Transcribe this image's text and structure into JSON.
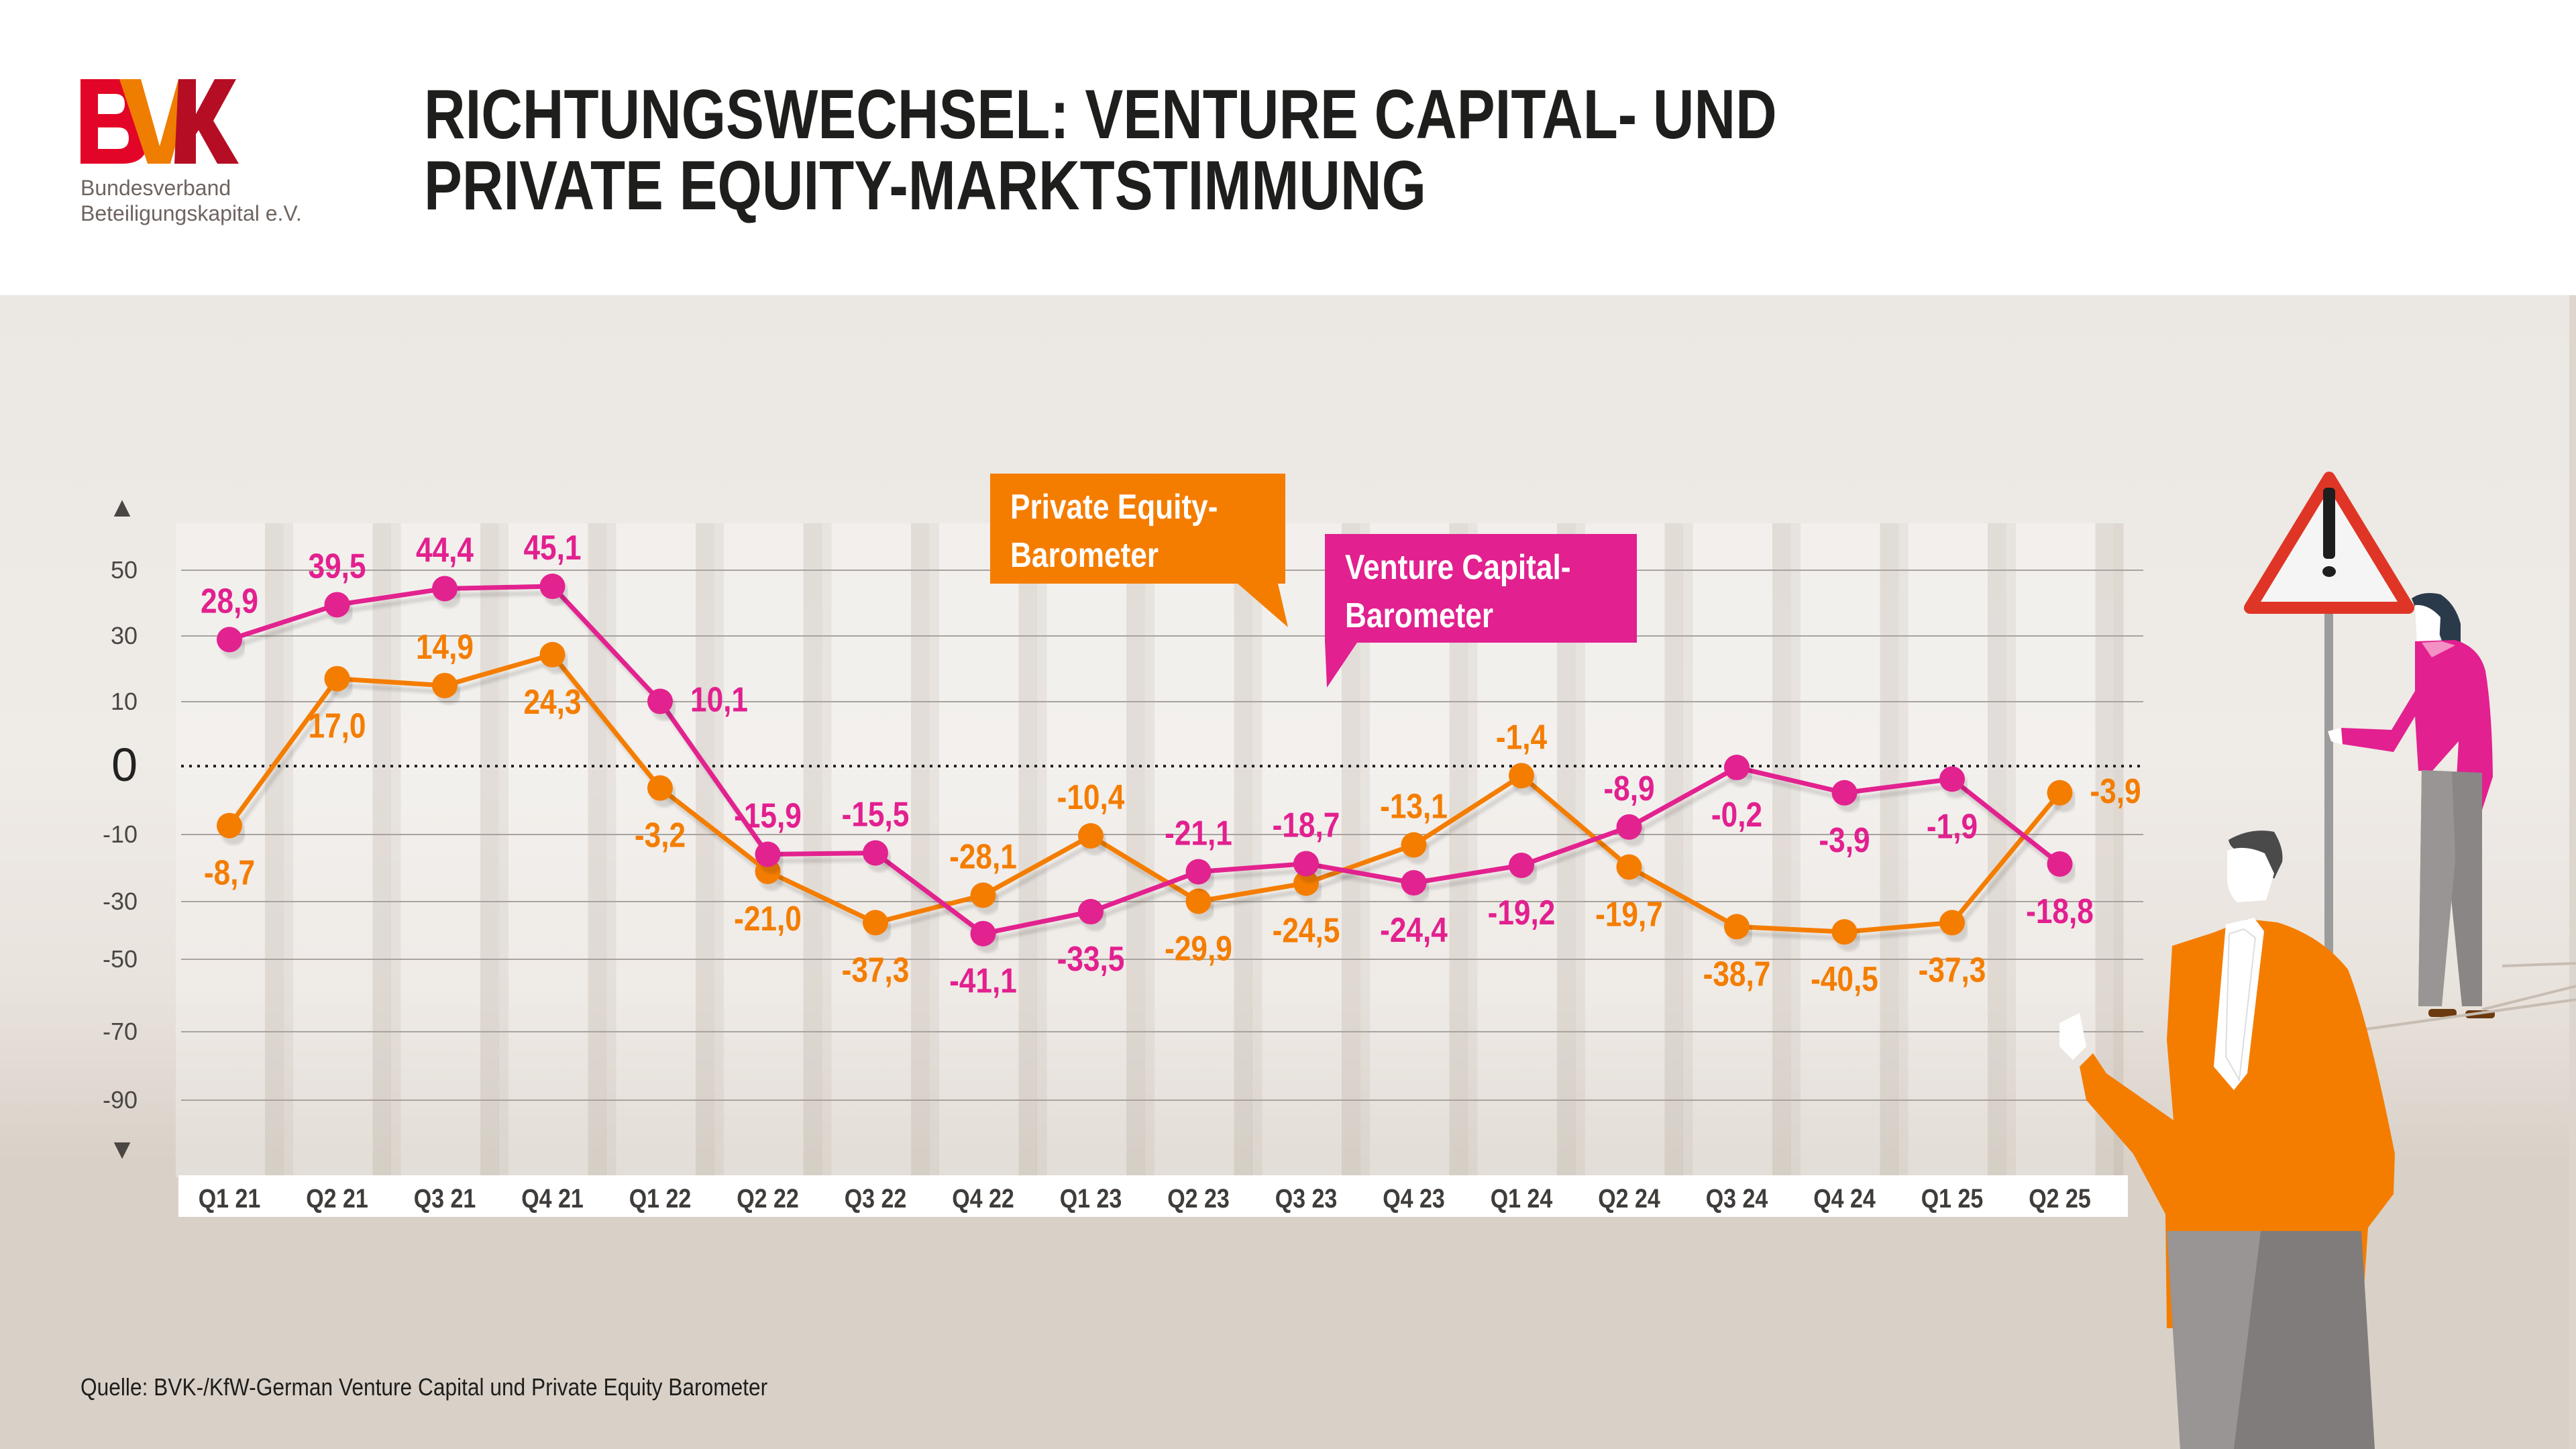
{
  "header": {
    "logo_text": "BVK",
    "org_line1": "Bundesverband",
    "org_line2": "Beteiligungskapital e.V.",
    "title_line1": "RICHTUNGSWECHSEL: VENTURE CAPITAL- UND",
    "title_line2": "PRIVATE EQUITY-MARKTSTIMMUNG"
  },
  "legend": {
    "pe_line1": "Private Equity-",
    "pe_line2": "Barometer",
    "vc_line1": "Venture Capital-",
    "vc_line2": "Barometer"
  },
  "source": "Quelle: BVK-/KfW-German Venture Capital und Private Equity Barometer",
  "icons": {
    "up_arrow": "▲",
    "down_arrow": "▼",
    "warning_sign": "warning-triangle-icon"
  },
  "colors": {
    "pe": "#f47d00",
    "vc": "#e2208f",
    "logo_red": "#e30527",
    "logo_orange": "#ef7d00",
    "logo_darkred": "#b50e24",
    "grid": "#a8a39e",
    "text_dark": "#1e1e1c",
    "axis_text": "#4a4643"
  },
  "chart_data": {
    "type": "line",
    "title": "RICHTUNGSWECHSEL: VENTURE CAPITAL- UND PRIVATE EQUITY-MARKTSTIMMUNG",
    "xlabel": "",
    "ylabel": "",
    "categories": [
      "Q1 21",
      "Q2 21",
      "Q3 21",
      "Q4 21",
      "Q1 22",
      "Q2 22",
      "Q3 22",
      "Q4 22",
      "Q1 23",
      "Q2 23",
      "Q3 23",
      "Q4 23",
      "Q1 24",
      "Q2 24",
      "Q3 24",
      "Q4 24",
      "Q1 25",
      "Q2 25"
    ],
    "y_ticks": [
      50,
      30,
      10,
      0,
      -10,
      -30,
      -50,
      -70,
      -90
    ],
    "y_tick_labels": [
      "50",
      "30",
      "10",
      "0",
      "-10",
      "-30",
      "-50",
      "-70",
      "-90"
    ],
    "ylim": [
      -100,
      60
    ],
    "grid": true,
    "zero_line": "dotted",
    "legend_placement": "top-center callouts",
    "series": [
      {
        "name": "Private Equity-Barometer",
        "color": "#f47d00",
        "values": [
          -8.7,
          17.0,
          14.9,
          24.3,
          -3.2,
          -21.0,
          -37.3,
          -28.1,
          -10.4,
          -29.9,
          -24.5,
          -13.1,
          -1.4,
          -19.7,
          -38.7,
          -40.5,
          -37.3,
          -3.9
        ],
        "labels": [
          "-8,7",
          "17,0",
          "14,9",
          "24,3",
          "-3,2",
          "-21,0",
          "-37,3",
          "-28,1",
          "-10,4",
          "-29,9",
          "-24,5",
          "-13,1",
          "-1,4",
          "-19,7",
          "-38,7",
          "-40,5",
          "-37,3",
          "-3,9"
        ],
        "label_side": [
          "below",
          "below",
          "above",
          "below",
          "below",
          "below",
          "below",
          "above",
          "above",
          "below",
          "below",
          "above",
          "above",
          "below",
          "below",
          "below",
          "below",
          "right"
        ]
      },
      {
        "name": "Venture Capital-Barometer",
        "color": "#e2208f",
        "values": [
          28.9,
          39.5,
          44.4,
          45.1,
          10.1,
          -15.9,
          -15.5,
          -41.1,
          -33.5,
          -21.1,
          -18.7,
          -24.4,
          -19.2,
          -8.9,
          -0.2,
          -3.9,
          -1.9,
          -18.8
        ],
        "labels": [
          "28,9",
          "39,5",
          "44,4",
          "45,1",
          "10,1",
          "-15,9",
          "-15,5",
          "-41,1",
          "-33,5",
          "-21,1",
          "-18,7",
          "-24,4",
          "-19,2",
          "-8,9",
          "-0,2",
          "-3,9",
          "-1,9",
          "-18,8"
        ],
        "label_side": [
          "above",
          "above",
          "above",
          "above",
          "right",
          "above",
          "above",
          "below",
          "below",
          "above",
          "above",
          "below",
          "below",
          "above",
          "below",
          "below",
          "below",
          "below"
        ]
      }
    ]
  }
}
